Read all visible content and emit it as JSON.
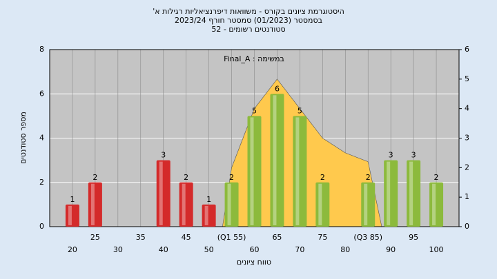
{
  "chart_data": {
    "type": "bar",
    "title": [
      "היסטוגרמת ציונים בקורס - משוואות דיפרנציאליות רגילות א'",
      "בסמסטר (01/2023) סמסטר חורף 2023/24",
      "סטודנטים רשומים - 52"
    ],
    "annotation": "במשימה : Final_A",
    "xlabel": "טווח ציונים",
    "ylabel": "מספר סטודנטים",
    "x": [
      20,
      25,
      30,
      35,
      40,
      45,
      50,
      55,
      60,
      65,
      70,
      75,
      80,
      85,
      90,
      95,
      100
    ],
    "values": [
      1,
      2,
      0,
      0,
      3,
      2,
      1,
      2,
      5,
      6,
      5,
      2,
      0,
      2,
      3,
      3,
      2
    ],
    "colors": [
      "#d42a2a",
      "#d42a2a",
      "#d42a2a",
      "#d42a2a",
      "#d42a2a",
      "#d42a2a",
      "#d42a2a",
      "#8cba3c",
      "#8cba3c",
      "#8cba3c",
      "#8cba3c",
      "#8cba3c",
      "#8cba3c",
      "#8cba3c",
      "#8cba3c",
      "#8cba3c",
      "#8cba3c"
    ],
    "value_labels": [
      "1",
      "2",
      null,
      null,
      "3",
      "2",
      "1",
      "2",
      "5",
      "6",
      "5",
      "2",
      null,
      "2",
      "3",
      "3",
      "2"
    ],
    "area": {
      "x": [
        53,
        55,
        60,
        65,
        70,
        75,
        80,
        85,
        88
      ],
      "values": [
        0,
        2,
        4,
        5,
        4,
        3,
        2.5,
        2.2,
        0
      ],
      "color": "#ffc94d",
      "axis": "y2"
    },
    "xlim": [
      15,
      105
    ],
    "xticks": [
      20,
      25,
      30,
      35,
      40,
      45,
      50,
      {
        "value": 55,
        "label": "(Q1 55)"
      },
      60,
      65,
      70,
      75,
      80,
      {
        "value": 85,
        "label": "(Q3 85)"
      },
      90,
      95,
      100
    ],
    "ylim": [
      0,
      8
    ],
    "yticks": [
      0,
      2,
      4,
      6,
      8
    ],
    "y2lim": [
      0,
      6
    ],
    "y2ticks": [
      0,
      1,
      2,
      3,
      4,
      5,
      6
    ],
    "grid": true
  }
}
